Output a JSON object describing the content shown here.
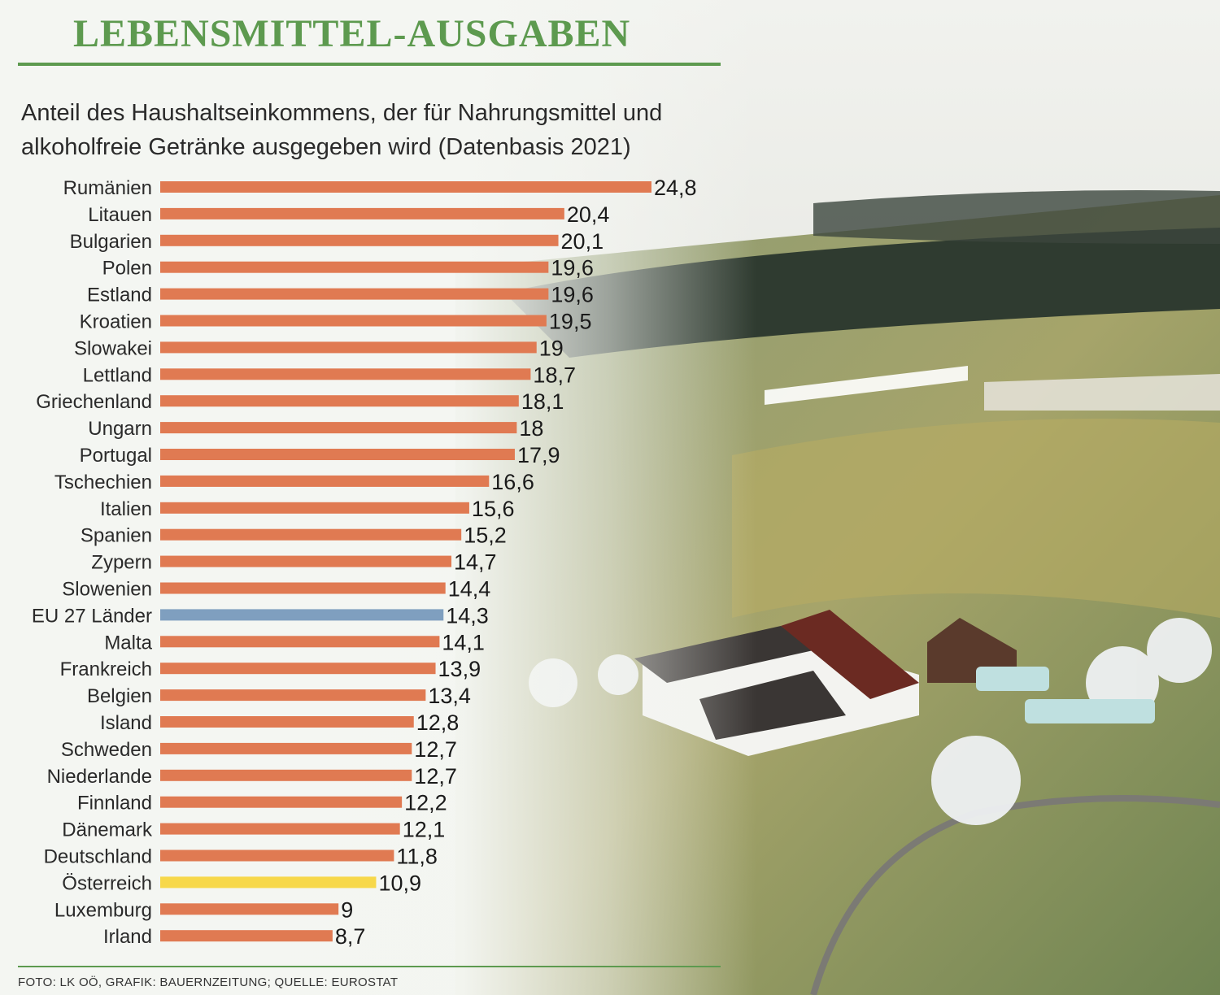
{
  "title": "LEBENSMITTEL-AUSGABEN",
  "subtitle": "Anteil des Haushaltseinkommens, der für Nahrungsmittel und alkoholfreie Getränke ausgegeben wird (Datenbasis 2021)",
  "credits": "FOTO: LK OÖ, GRAFIK: BAUERNZEITUNG; QUELLE: EUROSTAT",
  "colors": {
    "title": "#5d9a4f",
    "bar_default": "#e07a52",
    "bar_eu": "#7f9fbf",
    "bar_austria": "#f7d84a"
  },
  "chart_data": {
    "type": "bar",
    "orientation": "horizontal",
    "categories": [
      "Rumänien",
      "Litauen",
      "Bulgarien",
      "Polen",
      "Estland",
      "Kroatien",
      "Slowakei",
      "Lettland",
      "Griechenland",
      "Ungarn",
      "Portugal",
      "Tschechien",
      "Italien",
      "Spanien",
      "Zypern",
      "Slowenien",
      "EU 27 Länder",
      "Malta",
      "Frankreich",
      "Belgien",
      "Island",
      "Schweden",
      "Niederlande",
      "Finnland",
      "Dänemark",
      "Deutschland",
      "Österreich",
      "Luxemburg",
      "Irland"
    ],
    "values": [
      24.8,
      20.4,
      20.1,
      19.6,
      19.6,
      19.5,
      19,
      18.7,
      18.1,
      18,
      17.9,
      16.6,
      15.6,
      15.2,
      14.7,
      14.4,
      14.3,
      14.1,
      13.9,
      13.4,
      12.8,
      12.7,
      12.7,
      12.2,
      12.1,
      11.8,
      10.9,
      9,
      8.7
    ],
    "value_labels": [
      "24,8",
      "20,4",
      "20,1",
      "19,6",
      "19,6",
      "19,5",
      "19",
      "18,7",
      "18,1",
      "18",
      "17,9",
      "16,6",
      "15,6",
      "15,2",
      "14,7",
      "14,4",
      "14,3",
      "14,1",
      "13,9",
      "13,4",
      "12,8",
      "12,7",
      "12,7",
      "12,2",
      "12,1",
      "11,8",
      "10,9",
      "9",
      "8,7"
    ],
    "highlight": {
      "EU 27 Länder": "bar_eu",
      "Österreich": "bar_austria"
    },
    "xlim": [
      0,
      24.8
    ],
    "grid": false,
    "legend": "none"
  }
}
